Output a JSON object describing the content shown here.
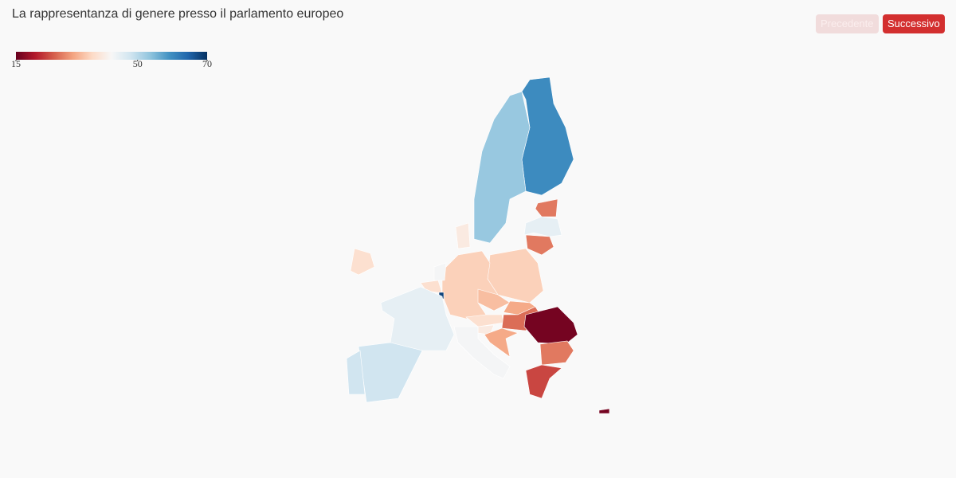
{
  "chart_data": {
    "type": "choropleth",
    "title": "La rappresentanza di genere presso il parlamento europeo",
    "colorscale": [
      "#67001f",
      "#b2182b",
      "#d6604d",
      "#f4a582",
      "#fddbc7",
      "#f7f7f7",
      "#d1e5f0",
      "#92c5de",
      "#4393c3",
      "#2166ac",
      "#053061"
    ],
    "range": [
      15,
      70
    ],
    "ticks": [
      15,
      50,
      70
    ],
    "values": [
      60,
      53,
      28,
      45,
      28,
      36,
      36,
      40,
      43,
      38,
      68,
      45,
      48,
      48,
      38,
      34,
      32,
      38,
      27,
      40,
      32,
      43,
      16,
      28,
      24,
      16
    ]
  },
  "buttons": {
    "previous": "Precedente",
    "next": "Successivo"
  }
}
